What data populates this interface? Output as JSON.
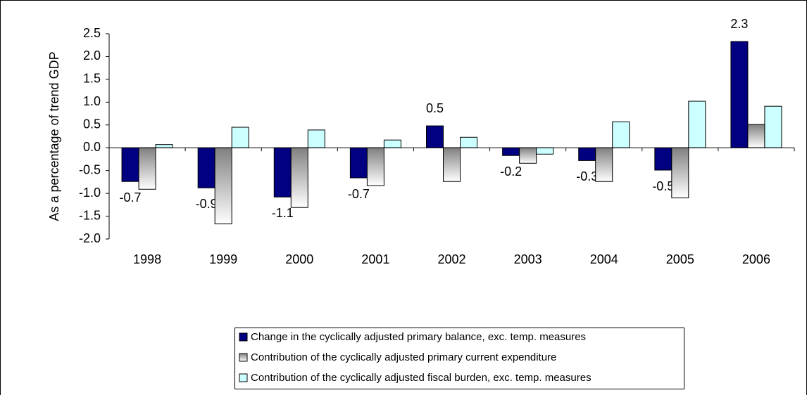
{
  "chart_data": {
    "type": "bar",
    "y_label": "As a percentage of trend GDP",
    "categories": [
      "1998",
      "1999",
      "2000",
      "2001",
      "2002",
      "2003",
      "2004",
      "2005",
      "2006"
    ],
    "series": [
      {
        "name": "Change in the cyclically adjusted primary balance, exc. temp. measures",
        "color": "#000080",
        "values": [
          -0.74,
          -0.88,
          -1.08,
          -0.66,
          0.48,
          -0.17,
          -0.28,
          -0.49,
          2.33
        ],
        "value_labels": [
          "-0.7",
          "-0.9",
          "-1.1",
          "-0.7",
          "0.5",
          "-0.2",
          "-0.3",
          "-0.5",
          "2.3"
        ]
      },
      {
        "name": "Contribution of the cyclically adjusted primary current expenditure",
        "color": "#808080",
        "gradient": true,
        "values": [
          -0.91,
          -1.67,
          -1.31,
          -0.83,
          -0.74,
          -0.34,
          -0.74,
          -1.1,
          0.51
        ]
      },
      {
        "name": "Contribution of the cyclically adjusted fiscal burden, exc. temp. measures",
        "color": "#ccffff",
        "values": [
          0.07,
          0.45,
          0.39,
          0.17,
          0.23,
          -0.14,
          0.57,
          1.02,
          0.91
        ]
      }
    ],
    "ylim": [
      -2,
      2.5
    ],
    "yticks": [
      {
        "value": -2,
        "label": "-2.0"
      },
      -1.5,
      {
        "value": -1,
        "label": "-1.0"
      },
      -0.5,
      {
        "value": 0,
        "label": "0.0"
      },
      0.5,
      {
        "value": 1,
        "label": "1.0"
      },
      1.5,
      {
        "value": 2,
        "label": "2.0"
      },
      2.5
    ]
  }
}
